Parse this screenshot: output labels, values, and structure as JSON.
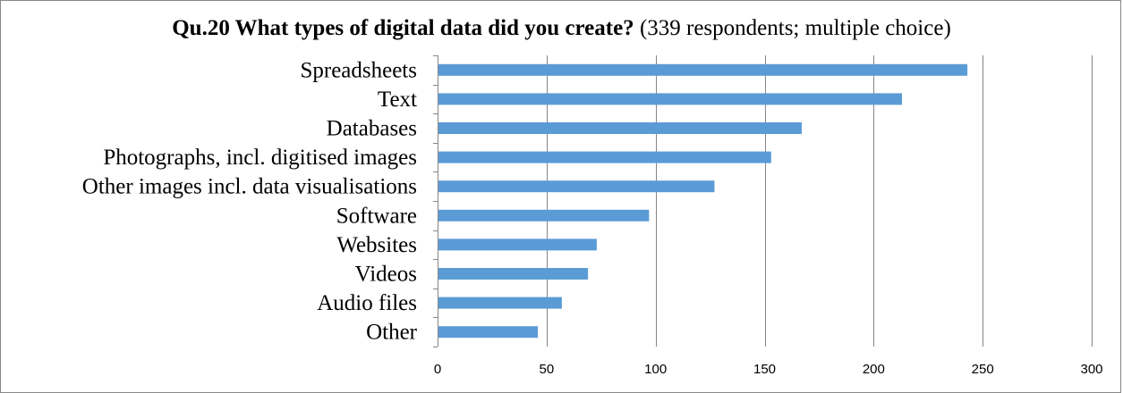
{
  "chart_data": {
    "type": "bar",
    "orientation": "horizontal",
    "title_bold": "Qu.20 What types of digital data did you create?",
    "title_rest": " (339 respondents; multiple choice)",
    "categories": [
      "Spreadsheets",
      "Text",
      "Databases",
      "Photographs, incl. digitised images",
      "Other images incl. data visualisations",
      "Software",
      "Websites",
      "Videos",
      "Audio files",
      "Other"
    ],
    "values": [
      243,
      213,
      167,
      153,
      127,
      97,
      73,
      69,
      57,
      46
    ],
    "xlim": [
      0,
      300
    ],
    "xticks": [
      "0",
      "50",
      "100",
      "150",
      "200",
      "250",
      "300"
    ],
    "xlabel": "",
    "ylabel": "",
    "grid": true,
    "legend": "none",
    "bar_color": "#5b9bd5",
    "grid_color": "#868686"
  }
}
